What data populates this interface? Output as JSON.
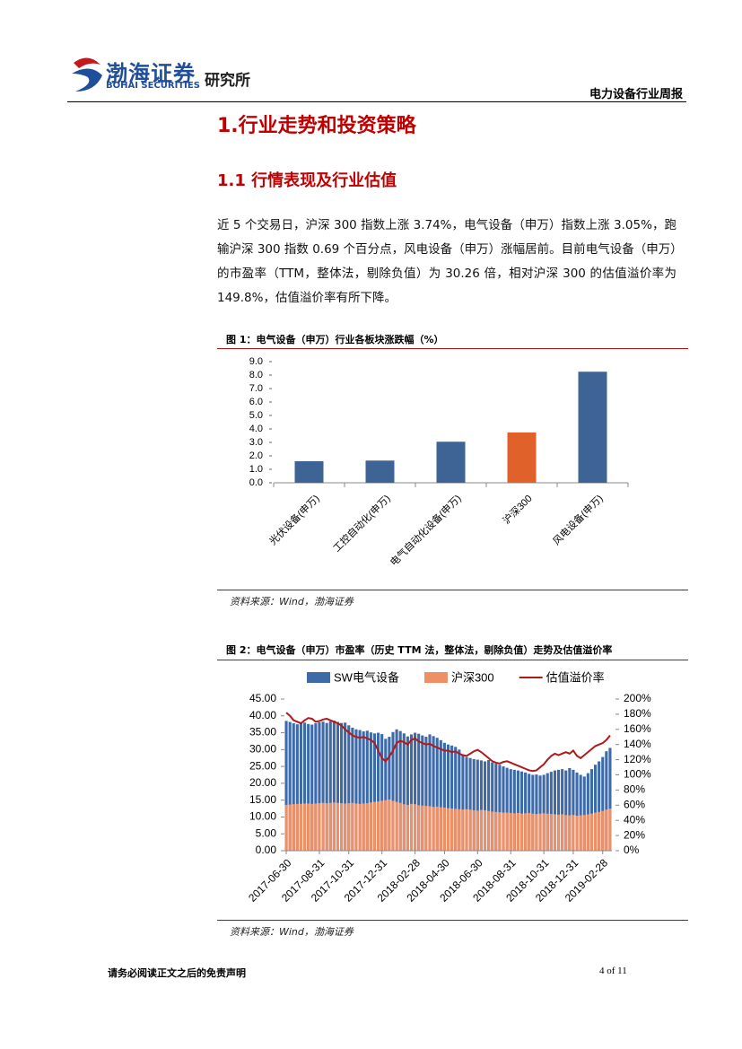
{
  "header": {
    "logo_cn": "渤海证券",
    "logo_en": "BOHAI SECURITIES",
    "institute": "研究所",
    "report": "电力设备行业周报"
  },
  "section": {
    "title": "1.行业走势和投资策略",
    "subtitle": "1.1 行情表现及行业估值",
    "paragraph": "近 5 个交易日，沪深 300 指数上涨 3.74%，电气设备（申万）指数上涨 3.05%，跑输沪深 300 指数 0.69 个百分点，风电设备（申万）涨幅居前。目前电气设备（申万）的市盈率（TTM，整体法，剔除负值）为 30.26 倍，相对沪深 300 的估值溢价率为 149.8%，估值溢价率有所下降。"
  },
  "figures": [
    {
      "caption": "图 1：电气设备（申万）行业各板块涨跌幅（%）",
      "source": "资料来源：Wind，渤海证券"
    },
    {
      "caption": "图 2：电气设备（申万）市盈率（历史 TTM 法，整体法，剔除负值）走势及估值溢价率",
      "source": "资料来源：Wind，渤海证券"
    }
  ],
  "footer": {
    "disclaimer": "请务必阅读正文之后的免责声明",
    "page": "4 of 11"
  },
  "chart_data": [
    {
      "type": "bar",
      "categories": [
        "光伏设备(申万)",
        "工控自动化(申万)",
        "电气自动化设备(申万)",
        "沪深300",
        "风电设备(申万)"
      ],
      "values": [
        1.6,
        1.65,
        3.05,
        3.74,
        8.25
      ],
      "colors": [
        "#3e6496",
        "#3e6496",
        "#3e6496",
        "#e0622a",
        "#3e6496"
      ],
      "ylim": [
        0,
        9
      ],
      "yticks": [
        {
          "value": 0,
          "label": "0.0"
        },
        {
          "value": 1,
          "label": "1.0"
        },
        {
          "value": 2,
          "label": "2.0"
        },
        {
          "value": 3,
          "label": "3.0"
        },
        {
          "value": 4,
          "label": "4.0"
        },
        {
          "value": 5,
          "label": "5.0"
        },
        {
          "value": 6,
          "label": "6.0"
        },
        {
          "value": 7,
          "label": "7.0"
        },
        {
          "value": 8,
          "label": "8.0"
        },
        {
          "value": 9,
          "label": "9.0"
        }
      ]
    },
    {
      "type": "combo",
      "x": [
        "2017-06-30",
        null,
        null,
        null,
        null,
        null,
        null,
        null,
        null,
        "2017-08-31",
        null,
        null,
        null,
        null,
        null,
        null,
        null,
        "2017-10-31",
        null,
        null,
        null,
        null,
        null,
        null,
        null,
        null,
        "2017-12-31",
        null,
        null,
        null,
        null,
        null,
        null,
        null,
        null,
        "2018-02-28",
        null,
        null,
        null,
        null,
        null,
        null,
        null,
        "2018-04-30",
        null,
        null,
        null,
        null,
        null,
        null,
        null,
        null,
        "2018-06-30",
        null,
        null,
        null,
        null,
        null,
        null,
        null,
        null,
        "2018-08-31",
        null,
        null,
        null,
        null,
        null,
        null,
        null,
        null,
        "2018-10-31",
        null,
        null,
        null,
        null,
        null,
        null,
        null,
        "2018-12-31",
        null,
        null,
        null,
        null,
        null,
        null,
        null,
        "2019-02-28",
        null,
        null
      ],
      "series": [
        {
          "name": "SW电气设备",
          "color": "#3e6aa8",
          "values": [
            38.5,
            38.2,
            37.8,
            37.5,
            37.9,
            38.0,
            37.6,
            37.4,
            37.8,
            38.1,
            38.3,
            37.9,
            38.4,
            38.6,
            38.2,
            37.9,
            38.0,
            37.2,
            36.5,
            36.0,
            35.8,
            35.4,
            35.6,
            35.1,
            34.8,
            35.0,
            34.6,
            33.2,
            33.8,
            35.2,
            36.0,
            35.5,
            34.8,
            33.9,
            34.5,
            35.0,
            34.7,
            34.2,
            33.8,
            34.5,
            34.0,
            33.5,
            32.8,
            32.0,
            31.5,
            31.2,
            30.8,
            30.0,
            28.5,
            27.8,
            27.5,
            27.2,
            27.0,
            26.8,
            26.5,
            26.9,
            26.2,
            25.8,
            25.5,
            25.0,
            24.6,
            24.2,
            24.0,
            23.8,
            23.5,
            23.2,
            22.8,
            22.5,
            22.6,
            22.3,
            22.5,
            23.0,
            23.4,
            23.8,
            24.0,
            24.2,
            23.8,
            24.5,
            24.0,
            23.2,
            22.5,
            22.0,
            23.0,
            24.2,
            25.5,
            26.5,
            27.8,
            29.5,
            30.5
          ]
        },
        {
          "name": "沪深300",
          "color": "#ee8f65",
          "values": [
            13.6,
            13.7,
            13.8,
            13.9,
            13.9,
            14.0,
            14.0,
            13.9,
            14.0,
            14.1,
            14.2,
            14.1,
            14.2,
            14.3,
            14.2,
            14.1,
            14.0,
            14.1,
            14.2,
            14.0,
            13.9,
            14.0,
            14.1,
            14.3,
            14.5,
            14.6,
            14.8,
            15.0,
            15.2,
            14.8,
            14.5,
            14.2,
            13.8,
            13.6,
            13.9,
            13.8,
            13.5,
            13.4,
            13.3,
            13.2,
            13.0,
            13.1,
            12.9,
            12.8,
            12.6,
            12.5,
            12.4,
            12.3,
            12.2,
            12.3,
            12.2,
            12.0,
            11.9,
            12.1,
            12.0,
            11.8,
            11.6,
            11.5,
            11.4,
            11.3,
            11.3,
            11.2,
            11.1,
            11.2,
            11.0,
            11.1,
            11.2,
            11.0,
            10.9,
            11.0,
            11.1,
            11.0,
            10.9,
            10.8,
            10.7,
            10.8,
            10.6,
            10.5,
            10.6,
            10.4,
            10.5,
            10.6,
            10.8,
            11.0,
            11.3,
            11.5,
            11.8,
            12.2,
            12.5
          ]
        },
        {
          "name": "估值溢价率",
          "color": "#b01a1a",
          "axis": "y2",
          "values": [
            182,
            178,
            172,
            170,
            168,
            172,
            175,
            174,
            170,
            171,
            173,
            174,
            172,
            170,
            168,
            165,
            160,
            156,
            152,
            150,
            149,
            150,
            148,
            146,
            142,
            132,
            122,
            118,
            124,
            132,
            142,
            145,
            143,
            140,
            146,
            148,
            144,
            142,
            140,
            141,
            138,
            136,
            134,
            132,
            132,
            130,
            131,
            128,
            126,
            125,
            128,
            131,
            133,
            130,
            126,
            122,
            118,
            116,
            115,
            117,
            118,
            116,
            114,
            112,
            110,
            108,
            106,
            105,
            106,
            110,
            114,
            120,
            125,
            128,
            126,
            128,
            130,
            128,
            132,
            125,
            122,
            126,
            130,
            134,
            138,
            140,
            142,
            146,
            152
          ]
        }
      ],
      "ylim": [
        0,
        45
      ],
      "yticks": [
        {
          "value": 0,
          "label": "0.00"
        },
        {
          "value": 5,
          "label": "5.00"
        },
        {
          "value": 10,
          "label": "10.00"
        },
        {
          "value": 15,
          "label": "15.00"
        },
        {
          "value": 20,
          "label": "20.00"
        },
        {
          "value": 25,
          "label": "25.00"
        },
        {
          "value": 30,
          "label": "30.00"
        },
        {
          "value": 35,
          "label": "35.00"
        },
        {
          "value": 40,
          "label": "40.00"
        },
        {
          "value": 45,
          "label": "45.00"
        }
      ],
      "y2lim": [
        0,
        200
      ],
      "y2ticks": [
        {
          "value": 0,
          "label": "0%"
        },
        {
          "value": 20,
          "label": "20%"
        },
        {
          "value": 40,
          "label": "40%"
        },
        {
          "value": 60,
          "label": "60%"
        },
        {
          "value": 80,
          "label": "80%"
        },
        {
          "value": 100,
          "label": "100%"
        },
        {
          "value": 120,
          "label": "120%"
        },
        {
          "value": 140,
          "label": "140%"
        },
        {
          "value": 160,
          "label": "160%"
        },
        {
          "value": 180,
          "label": "180%"
        },
        {
          "value": 200,
          "label": "200%"
        }
      ]
    }
  ]
}
